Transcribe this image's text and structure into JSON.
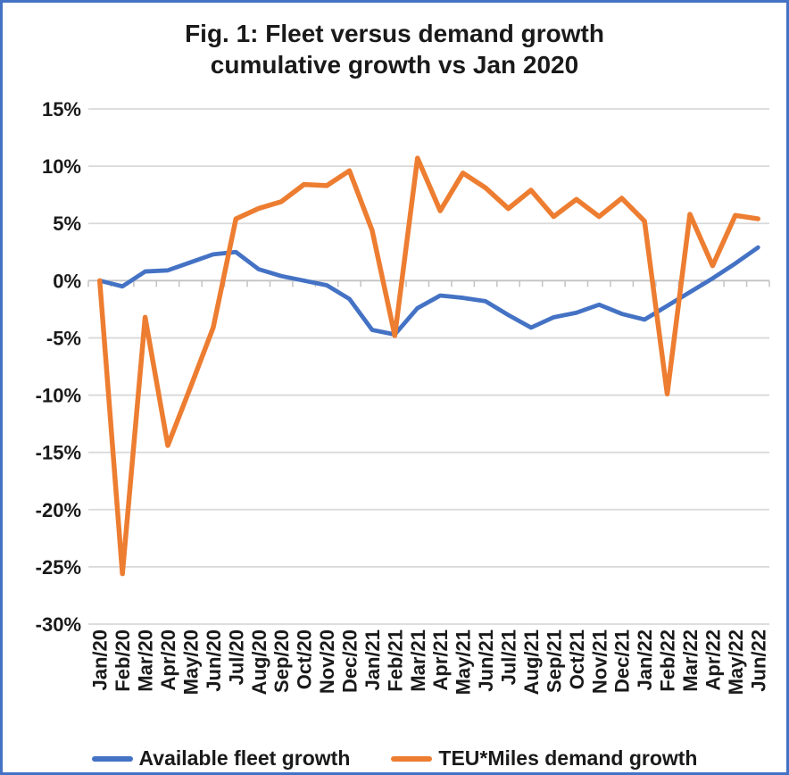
{
  "colors": {
    "border": "#4472C4",
    "gridline": "#D9D9D9",
    "axis": "#C3C3C3",
    "label_text": "#1a1a1a"
  },
  "legend": {
    "fleet_label": "Available fleet growth",
    "demand_label": "TEU*Miles demand growth"
  },
  "chart_data": {
    "type": "line",
    "title": "Fig. 1: Fleet versus demand growth",
    "subtitle": "cumulative growth vs Jan 2020",
    "categories": [
      "Jan/20",
      "Feb/20",
      "Mar/20",
      "Apr/20",
      "May/20",
      "Jun/20",
      "Jul/20",
      "Aug/20",
      "Sep/20",
      "Oct/20",
      "Nov/20",
      "Dec/20",
      "Jan/21",
      "Feb/21",
      "Mar/21",
      "Apr/21",
      "May/21",
      "Jun/21",
      "Jul/21",
      "Aug/21",
      "Sep/21",
      "Oct/21",
      "Nov/21",
      "Dec/21",
      "Jan/22",
      "Feb/22",
      "Mar/22",
      "Apr/22",
      "May/22",
      "Jun/22"
    ],
    "series": [
      {
        "name": "Available fleet growth",
        "color": "#4472C4",
        "values": [
          0.0,
          -0.5,
          0.8,
          0.9,
          1.6,
          2.3,
          2.5,
          1.0,
          0.4,
          0.0,
          -0.4,
          -1.6,
          -4.3,
          -4.7,
          -2.4,
          -1.3,
          -1.5,
          -1.8,
          -3.0,
          -4.1,
          -3.2,
          -2.8,
          -2.1,
          -2.9,
          -3.4,
          -2.2,
          -1.0,
          0.2,
          1.5,
          2.9
        ]
      },
      {
        "name": "TEU*Miles demand growth",
        "color": "#ED7D31",
        "values": [
          0.0,
          -25.6,
          -3.2,
          -14.4,
          -9.3,
          -4.1,
          5.4,
          6.3,
          6.9,
          8.4,
          8.3,
          9.6,
          4.4,
          -4.8,
          10.7,
          6.1,
          9.4,
          8.1,
          6.3,
          7.9,
          5.6,
          7.1,
          5.6,
          7.2,
          5.2,
          -9.9,
          5.8,
          1.3,
          5.7,
          5.4
        ]
      }
    ],
    "ylim": [
      -30,
      15
    ],
    "ytick_step": 5,
    "ytick_labels": [
      "15%",
      "10%",
      "5%",
      "0%",
      "-5%",
      "-10%",
      "-15%",
      "-20%",
      "-25%",
      "-30%"
    ],
    "grid": true,
    "legend_position": "bottom",
    "x_label_rotation": -90
  }
}
